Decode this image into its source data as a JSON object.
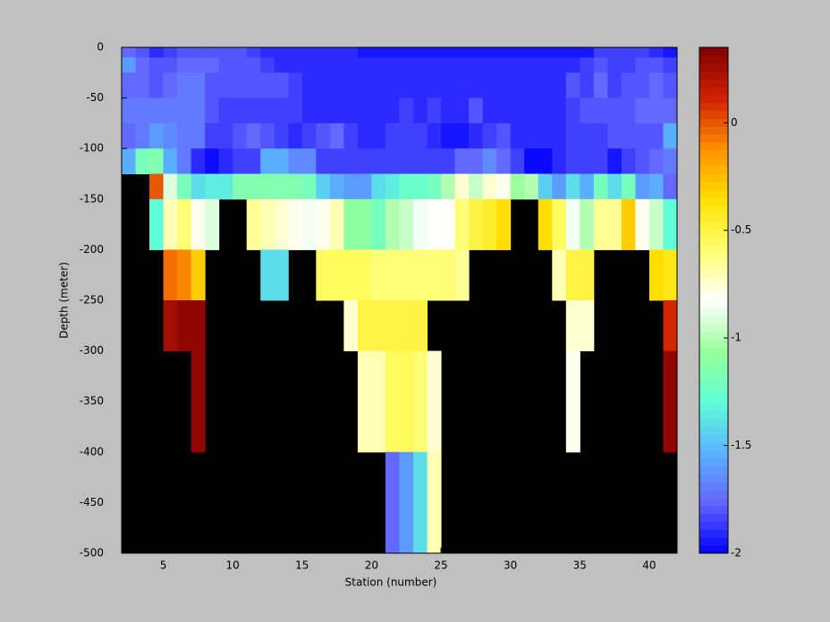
{
  "chart_data": {
    "type": "heatmap",
    "xlabel": "Station (number)",
    "ylabel": "Depth (meter)",
    "x_edges": [
      2,
      3,
      4,
      5,
      6,
      7,
      8,
      9,
      10,
      11,
      12,
      13,
      14,
      15,
      16,
      17,
      18,
      19,
      20,
      21,
      22,
      23,
      24,
      25,
      26,
      27,
      28,
      29,
      30,
      31,
      32,
      33,
      34,
      35,
      36,
      37,
      38,
      39,
      40,
      41,
      42
    ],
    "y_edges": [
      0,
      -10,
      -25,
      -50,
      -75,
      -100,
      -125,
      -150,
      -200,
      -250,
      -300,
      -400,
      -500
    ],
    "values": [
      [
        -1.75,
        -1.8,
        -1.9,
        -1.85,
        -1.8,
        -1.8,
        -1.8,
        -1.8,
        -1.8,
        -1.85,
        -1.9,
        -1.9,
        -1.9,
        -1.9,
        -1.9,
        -1.9,
        -1.9,
        -1.95,
        -1.95,
        -1.95,
        -1.95,
        -1.95,
        -1.95,
        -1.95,
        -1.95,
        -1.95,
        -1.95,
        -1.95,
        -1.95,
        -1.95,
        -1.95,
        -1.95,
        -1.95,
        -1.95,
        -1.85,
        -1.85,
        -1.85,
        -1.85,
        -1.9,
        -1.95
      ],
      [
        -1.6,
        -1.75,
        -1.8,
        -1.8,
        -1.75,
        -1.75,
        -1.75,
        -1.8,
        -1.8,
        -1.8,
        -1.85,
        -1.9,
        -1.9,
        -1.9,
        -1.9,
        -1.9,
        -1.9,
        -1.9,
        -1.9,
        -1.9,
        -1.9,
        -1.9,
        -1.9,
        -1.9,
        -1.9,
        -1.9,
        -1.9,
        -1.9,
        -1.9,
        -1.9,
        -1.9,
        -1.9,
        -1.9,
        -1.85,
        -1.8,
        -1.85,
        -1.85,
        -1.8,
        -1.8,
        -1.85
      ],
      [
        -1.75,
        -1.75,
        -1.8,
        -1.75,
        -1.7,
        -1.7,
        -1.8,
        -1.8,
        -1.8,
        -1.8,
        -1.8,
        -1.8,
        -1.85,
        -1.9,
        -1.9,
        -1.9,
        -1.9,
        -1.9,
        -1.9,
        -1.9,
        -1.9,
        -1.9,
        -1.9,
        -1.9,
        -1.9,
        -1.9,
        -1.9,
        -1.9,
        -1.9,
        -1.9,
        -1.9,
        -1.9,
        -1.8,
        -1.85,
        -1.75,
        -1.85,
        -1.8,
        -1.8,
        -1.75,
        -1.8
      ],
      [
        -1.7,
        -1.7,
        -1.7,
        -1.7,
        -1.7,
        -1.7,
        -1.8,
        -1.85,
        -1.85,
        -1.85,
        -1.85,
        -1.85,
        -1.85,
        -1.9,
        -1.9,
        -1.9,
        -1.9,
        -1.9,
        -1.9,
        -1.9,
        -1.85,
        -1.9,
        -1.85,
        -1.9,
        -1.9,
        -1.8,
        -1.9,
        -1.9,
        -1.9,
        -1.9,
        -1.9,
        -1.9,
        -1.85,
        -1.8,
        -1.8,
        -1.8,
        -1.8,
        -1.75,
        -1.75,
        -1.75
      ],
      [
        -1.75,
        -1.7,
        -1.6,
        -1.65,
        -1.7,
        -1.7,
        -1.85,
        -1.85,
        -1.8,
        -1.75,
        -1.8,
        -1.85,
        -1.9,
        -1.85,
        -1.8,
        -1.75,
        -1.85,
        -1.9,
        -1.9,
        -1.85,
        -1.85,
        -1.85,
        -1.9,
        -1.95,
        -1.95,
        -1.9,
        -1.85,
        -1.8,
        -1.9,
        -1.9,
        -1.9,
        -1.9,
        -1.85,
        -1.85,
        -1.85,
        -1.8,
        -1.8,
        -1.8,
        -1.8,
        -1.55
      ],
      [
        -1.55,
        -1.2,
        -1.15,
        -1.55,
        -1.7,
        -1.9,
        -1.97,
        -1.9,
        -1.85,
        -1.85,
        -1.55,
        -1.55,
        -1.65,
        -1.65,
        -1.85,
        -1.85,
        -1.85,
        -1.85,
        -1.85,
        -1.85,
        -1.85,
        -1.85,
        -1.85,
        -1.85,
        -1.75,
        -1.75,
        -1.65,
        -1.75,
        -1.85,
        -1.98,
        -1.98,
        -1.9,
        -1.85,
        -1.85,
        -1.85,
        -1.95,
        -1.85,
        -1.8,
        -1.75,
        -1.7
      ],
      [
        null,
        null,
        0.0,
        -0.9,
        -1.2,
        -1.4,
        -1.35,
        -1.35,
        -1.15,
        -1.15,
        -1.15,
        -1.15,
        -1.15,
        -1.2,
        -1.45,
        -1.55,
        -1.6,
        -1.6,
        -1.4,
        -1.35,
        -1.25,
        -1.25,
        -1.2,
        -1.0,
        -0.75,
        -0.95,
        -0.75,
        -0.8,
        -1.05,
        -1.0,
        -1.45,
        -1.6,
        -1.4,
        -1.55,
        -1.2,
        -1.4,
        -1.2,
        -1.6,
        -1.55,
        -1.75
      ],
      [
        null,
        null,
        -1.3,
        -0.7,
        -0.6,
        -0.8,
        -0.9,
        null,
        null,
        -0.65,
        -0.7,
        -0.75,
        -0.8,
        -0.85,
        -0.8,
        -0.7,
        -1.1,
        -1.1,
        -1.2,
        -1.0,
        -0.95,
        -0.85,
        -0.82,
        -0.82,
        -0.6,
        -0.5,
        -0.45,
        -0.35,
        null,
        null,
        -0.35,
        -0.55,
        -0.85,
        -1.0,
        -0.65,
        -0.65,
        -0.3,
        -0.8,
        -0.95,
        -1.3
      ],
      [
        null,
        null,
        null,
        -0.05,
        -0.1,
        -0.3,
        null,
        null,
        null,
        null,
        -1.4,
        -1.4,
        null,
        null,
        -0.55,
        -0.55,
        -0.55,
        -0.55,
        -0.6,
        -0.6,
        -0.6,
        -0.6,
        -0.6,
        -0.6,
        -0.65,
        null,
        null,
        null,
        null,
        null,
        null,
        -0.7,
        -0.5,
        -0.5,
        null,
        null,
        null,
        null,
        -0.35,
        -0.4
      ],
      [
        null,
        null,
        null,
        0.25,
        0.3,
        0.3,
        null,
        null,
        null,
        null,
        null,
        null,
        null,
        null,
        null,
        null,
        -0.75,
        -0.5,
        -0.5,
        -0.5,
        -0.5,
        -0.5,
        null,
        null,
        null,
        null,
        null,
        null,
        null,
        null,
        null,
        null,
        -0.75,
        -0.75,
        null,
        null,
        null,
        null,
        null,
        0.1
      ],
      [
        null,
        null,
        null,
        null,
        null,
        0.3,
        null,
        null,
        null,
        null,
        null,
        null,
        null,
        null,
        null,
        null,
        null,
        -0.7,
        -0.7,
        -0.55,
        -0.55,
        -0.6,
        -0.75,
        null,
        null,
        null,
        null,
        null,
        null,
        null,
        null,
        null,
        -0.8,
        null,
        null,
        null,
        null,
        null,
        null,
        0.3
      ],
      [
        null,
        null,
        null,
        null,
        null,
        null,
        null,
        null,
        null,
        null,
        null,
        null,
        null,
        null,
        null,
        null,
        null,
        null,
        null,
        -1.75,
        -1.6,
        -1.4,
        -0.7,
        null,
        null,
        null,
        null,
        null,
        null,
        null,
        null,
        null,
        null,
        null,
        null,
        null,
        null,
        null,
        null,
        null
      ]
    ],
    "xlim": [
      2,
      42
    ],
    "xticks": [
      5,
      10,
      15,
      20,
      25,
      30,
      35,
      40
    ],
    "ylim": [
      -500,
      0
    ],
    "yticks": [
      0,
      -50,
      -100,
      -150,
      -200,
      -250,
      -300,
      -350,
      -400,
      -450,
      -500
    ],
    "clim": [
      -2,
      0.35
    ],
    "cticks": [
      0,
      -0.5,
      -1,
      -1.5,
      -2
    ],
    "colormap": [
      "#0000ff",
      "#6464ff",
      "#5ab4ff",
      "#60ffd8",
      "#98ff98",
      "#ffffff",
      "#ffff70",
      "#ffe000",
      "#ff9000",
      "#d02000",
      "#800000"
    ],
    "missing_color": "#000000"
  }
}
